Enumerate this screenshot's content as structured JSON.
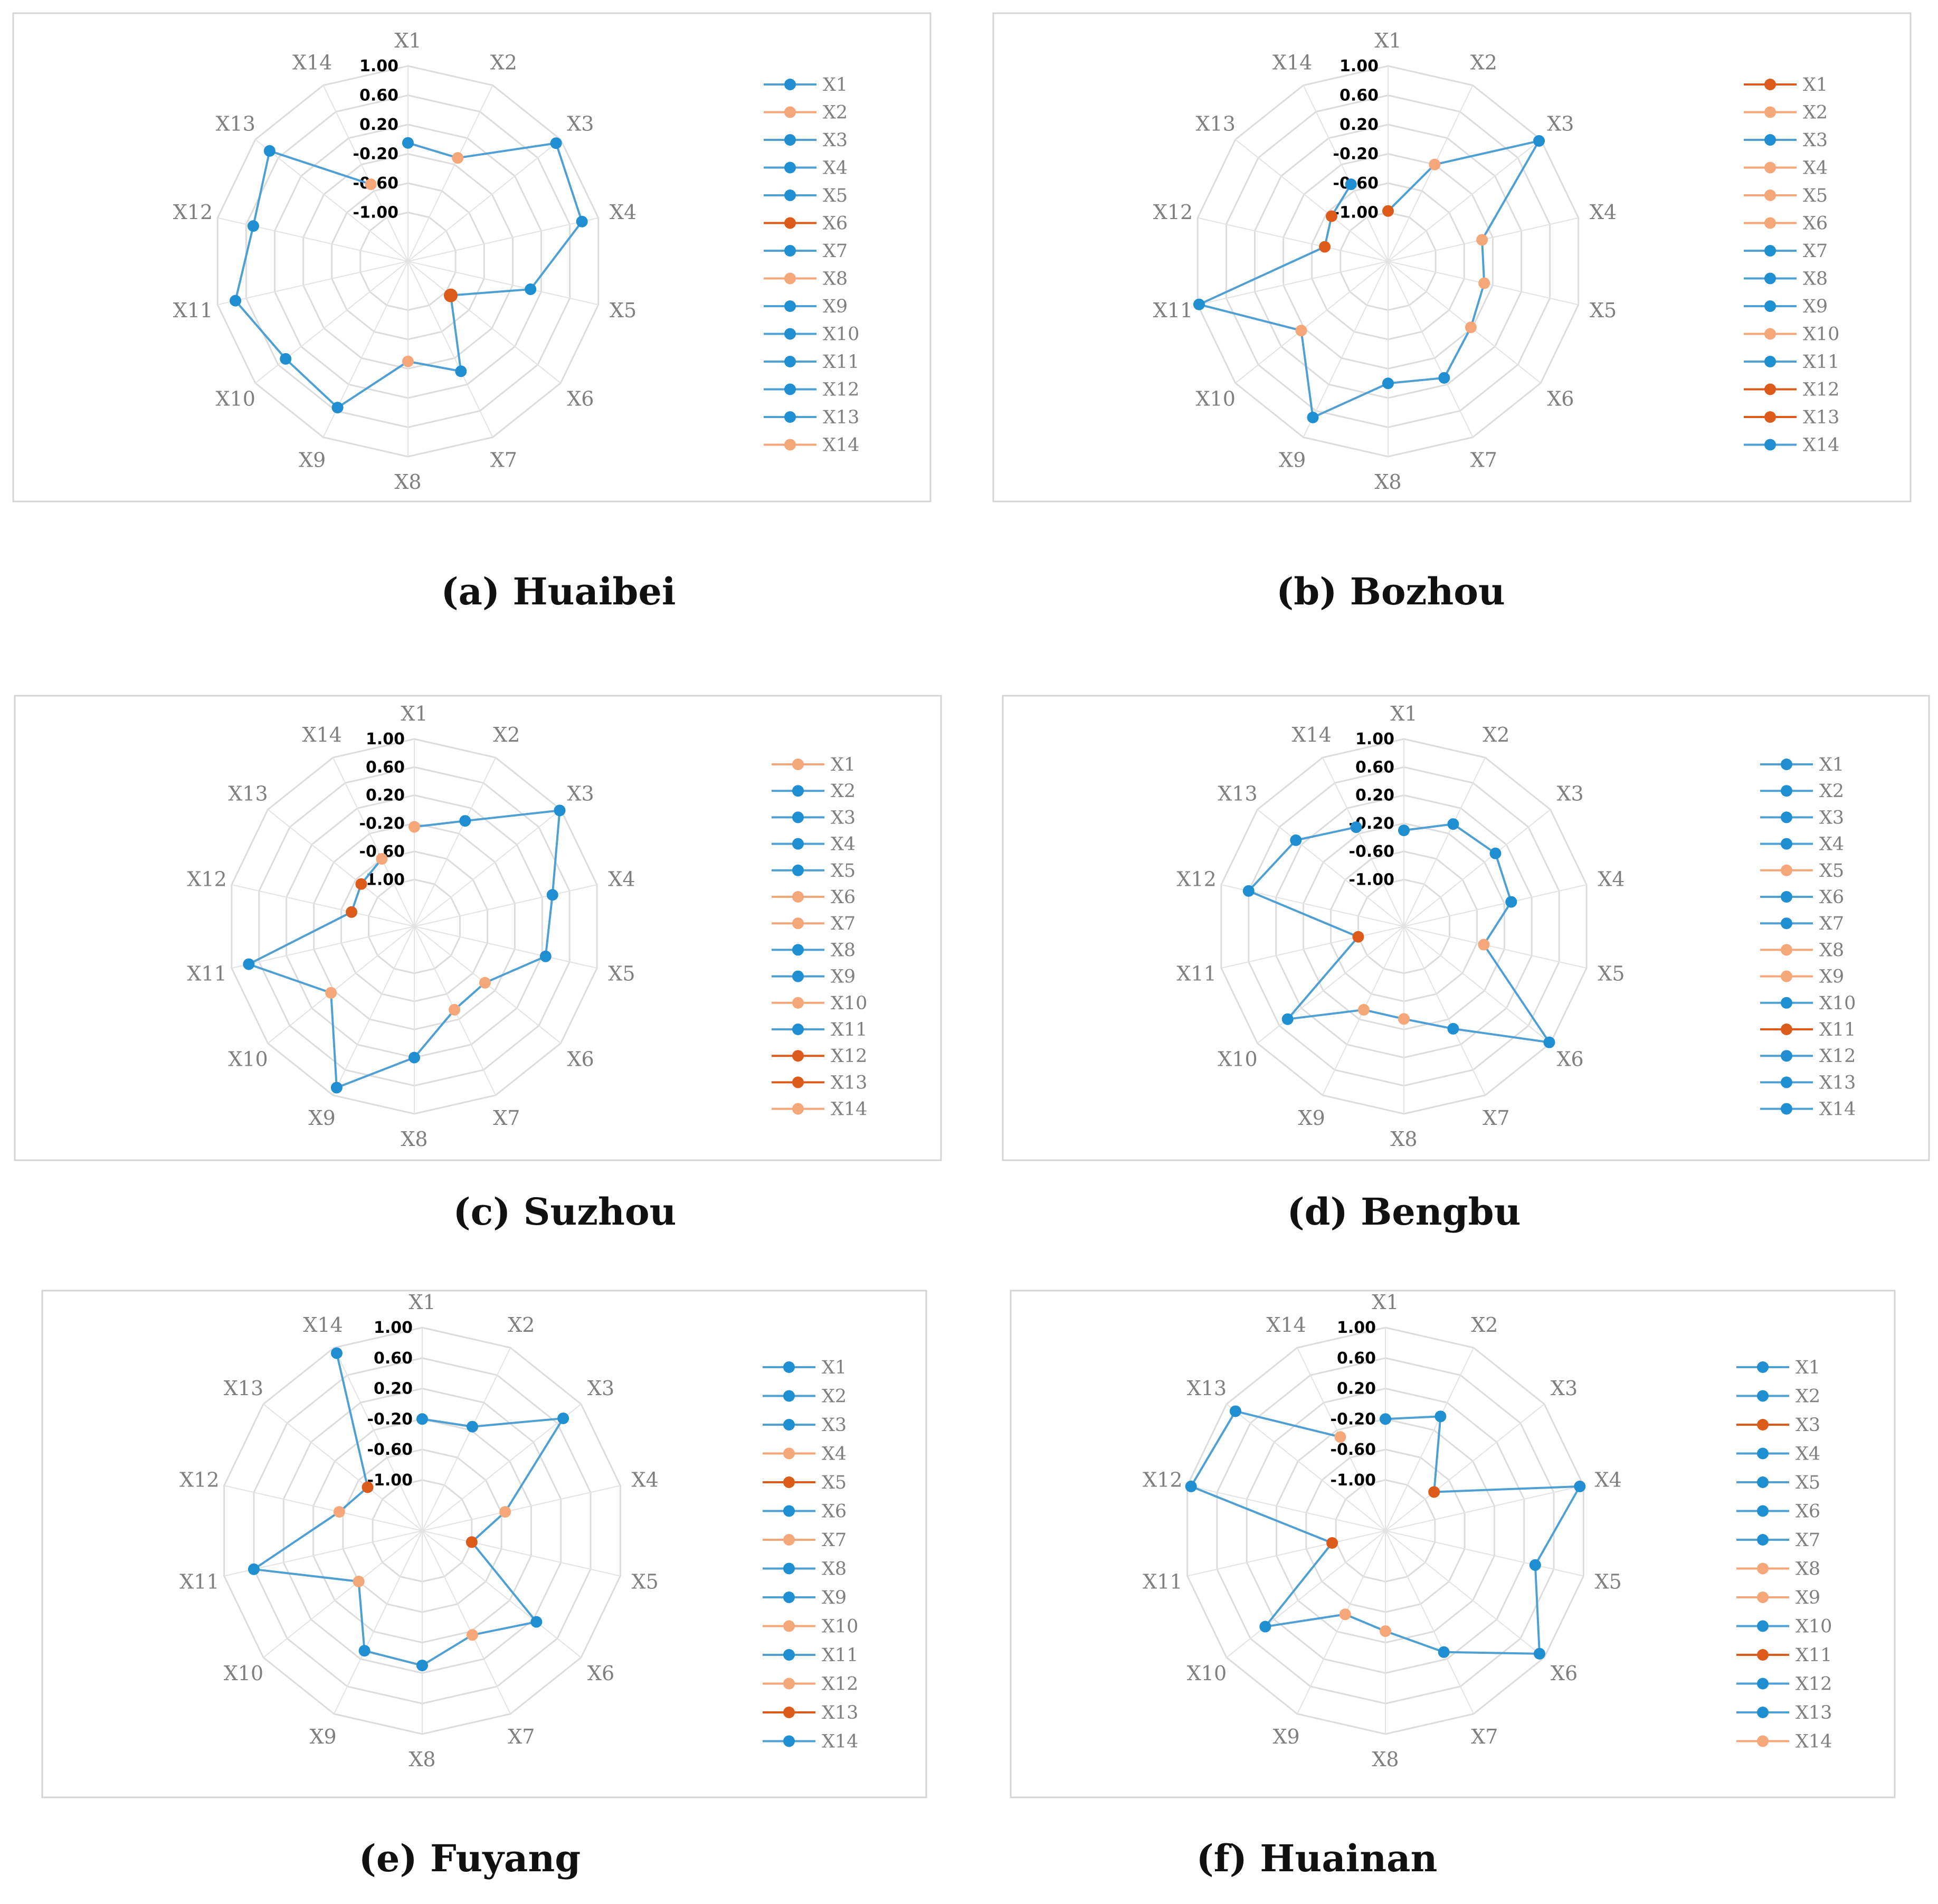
{
  "figure": {
    "colors": {
      "blue": "#1f8fd1",
      "light": "#f5a77a",
      "dark": "#dd5b1a",
      "line": "#4d9fd4"
    },
    "ring_ticks": [
      "1.00",
      "0.60",
      "0.20",
      "-0.20",
      "-0.60",
      "-1.00"
    ],
    "axis_labels": [
      "X1",
      "X2",
      "X3",
      "X4",
      "X5",
      "X6",
      "X7",
      "X8",
      "X9",
      "X10",
      "X11",
      "X12",
      "X13",
      "X14"
    ]
  },
  "chart_data": [
    {
      "type": "radar",
      "id": "a",
      "caption": "(a) Huaibei",
      "rlim": [
        -1.0,
        1.0
      ],
      "categories": [
        "X1",
        "X2",
        "X3",
        "X4",
        "X5",
        "X6",
        "X7",
        "X8",
        "X9",
        "X10",
        "X11",
        "X12",
        "X13",
        "X14"
      ],
      "values": [
        -0.05,
        -0.1,
        0.92,
        0.77,
        0.05,
        -0.92,
        0.0,
        -0.3,
        0.55,
        0.47,
        0.75,
        0.5,
        0.75,
        -0.5
      ],
      "point_colors": [
        "blue",
        "light",
        "blue",
        "blue",
        "blue",
        "dark",
        "blue",
        "light",
        "blue",
        "blue",
        "blue",
        "blue",
        "blue",
        "light"
      ],
      "legend": [
        "X1",
        "X2",
        "X3",
        "X4",
        "X5",
        "X6",
        "X7",
        "X8",
        "X9",
        "X10",
        "X11",
        "X12",
        "X13",
        "X14"
      ]
    },
    {
      "type": "radar",
      "id": "b",
      "caption": "(b) Bozhou",
      "rlim": [
        -1.0,
        1.0
      ],
      "categories": [
        "X1",
        "X2",
        "X3",
        "X4",
        "X5",
        "X6",
        "X7",
        "X8",
        "X9",
        "X10",
        "X11",
        "X12",
        "X13",
        "X14"
      ],
      "values": [
        -0.98,
        -0.2,
        0.97,
        -0.35,
        -0.32,
        -0.22,
        0.1,
        0.0,
        0.7,
        -0.15,
        0.98,
        -0.78,
        -0.68,
        -0.5
      ],
      "point_colors": [
        "dark",
        "light",
        "blue",
        "light",
        "light",
        "light",
        "blue",
        "blue",
        "blue",
        "light",
        "blue",
        "dark",
        "dark",
        "blue"
      ],
      "legend": [
        "X1",
        "X2",
        "X3",
        "X4",
        "X5",
        "X6",
        "X7",
        "X8",
        "X9",
        "X10",
        "X11",
        "X12",
        "X13",
        "X14"
      ]
    },
    {
      "type": "radar",
      "id": "c",
      "caption": "(c) Suzhou",
      "rlim": [
        -1.0,
        1.0
      ],
      "categories": [
        "X1",
        "X2",
        "X3",
        "X4",
        "X5",
        "X6",
        "X7",
        "X8",
        "X9",
        "X10",
        "X11",
        "X12",
        "X13",
        "X14"
      ],
      "values": [
        -0.25,
        0.0,
        0.98,
        0.35,
        0.25,
        -0.38,
        -0.35,
        0.2,
        0.88,
        -0.15,
        0.75,
        -0.75,
        -0.7,
        -0.6
      ],
      "point_colors": [
        "light",
        "blue",
        "blue",
        "blue",
        "blue",
        "light",
        "light",
        "blue",
        "blue",
        "light",
        "blue",
        "dark",
        "dark",
        "light"
      ],
      "legend": [
        "X1",
        "X2",
        "X3",
        "X4",
        "X5",
        "X6",
        "X7",
        "X8",
        "X9",
        "X10",
        "X11",
        "X12",
        "X13",
        "X14"
      ]
    },
    {
      "type": "radar",
      "id": "d",
      "caption": "(d) Bengbu",
      "rlim": [
        -1.0,
        1.0
      ],
      "categories": [
        "X1",
        "X2",
        "X3",
        "X4",
        "X5",
        "X6",
        "X7",
        "X8",
        "X9",
        "X10",
        "X11",
        "X12",
        "X13",
        "X14"
      ],
      "values": [
        -0.3,
        -0.05,
        0.0,
        -0.1,
        -0.5,
        0.98,
        -0.05,
        -0.35,
        -0.35,
        0.45,
        -1.0,
        0.6,
        0.3,
        -0.1
      ],
      "point_colors": [
        "blue",
        "blue",
        "blue",
        "blue",
        "light",
        "blue",
        "blue",
        "light",
        "light",
        "blue",
        "dark",
        "blue",
        "blue",
        "blue"
      ],
      "legend": [
        "X1",
        "X2",
        "X3",
        "X4",
        "X5",
        "X6",
        "X7",
        "X8",
        "X9",
        "X10",
        "X11",
        "X12",
        "X13",
        "X14"
      ]
    },
    {
      "type": "radar",
      "id": "e",
      "caption": "(e) Fuyang",
      "rlim": [
        -1.0,
        1.0
      ],
      "categories": [
        "X1",
        "X2",
        "X3",
        "X4",
        "X5",
        "X6",
        "X7",
        "X8",
        "X9",
        "X10",
        "X11",
        "X12",
        "X13",
        "X14"
      ],
      "values": [
        -0.2,
        -0.15,
        0.7,
        -0.55,
        -1.0,
        0.25,
        -0.15,
        0.1,
        0.08,
        -0.6,
        0.6,
        -0.55,
        -0.75,
        0.92
      ],
      "point_colors": [
        "blue",
        "blue",
        "blue",
        "light",
        "dark",
        "blue",
        "light",
        "blue",
        "blue",
        "light",
        "blue",
        "light",
        "dark",
        "blue"
      ],
      "legend": [
        "X1",
        "X2",
        "X3",
        "X4",
        "X5",
        "X6",
        "X7",
        "X8",
        "X9",
        "X10",
        "X11",
        "X12",
        "X13",
        "X14"
      ]
    },
    {
      "type": "radar",
      "id": "f",
      "caption": "(f) Huainan",
      "rlim": [
        -1.0,
        1.0
      ],
      "categories": [
        "X1",
        "X2",
        "X3",
        "X4",
        "X5",
        "X6",
        "X7",
        "X8",
        "X9",
        "X10",
        "X11",
        "X12",
        "X13",
        "X14"
      ],
      "values": [
        -0.2,
        0.0,
        -0.85,
        0.95,
        0.35,
        0.92,
        0.1,
        -0.35,
        -0.45,
        0.35,
        -0.95,
        0.95,
        0.85,
        -0.3
      ],
      "point_colors": [
        "blue",
        "blue",
        "dark",
        "blue",
        "blue",
        "blue",
        "blue",
        "light",
        "light",
        "blue",
        "dark",
        "blue",
        "blue",
        "light"
      ],
      "legend": [
        "X1",
        "X2",
        "X3",
        "X4",
        "X5",
        "X6",
        "X7",
        "X8",
        "X9",
        "X10",
        "X11",
        "X12",
        "X13",
        "X14"
      ]
    }
  ]
}
